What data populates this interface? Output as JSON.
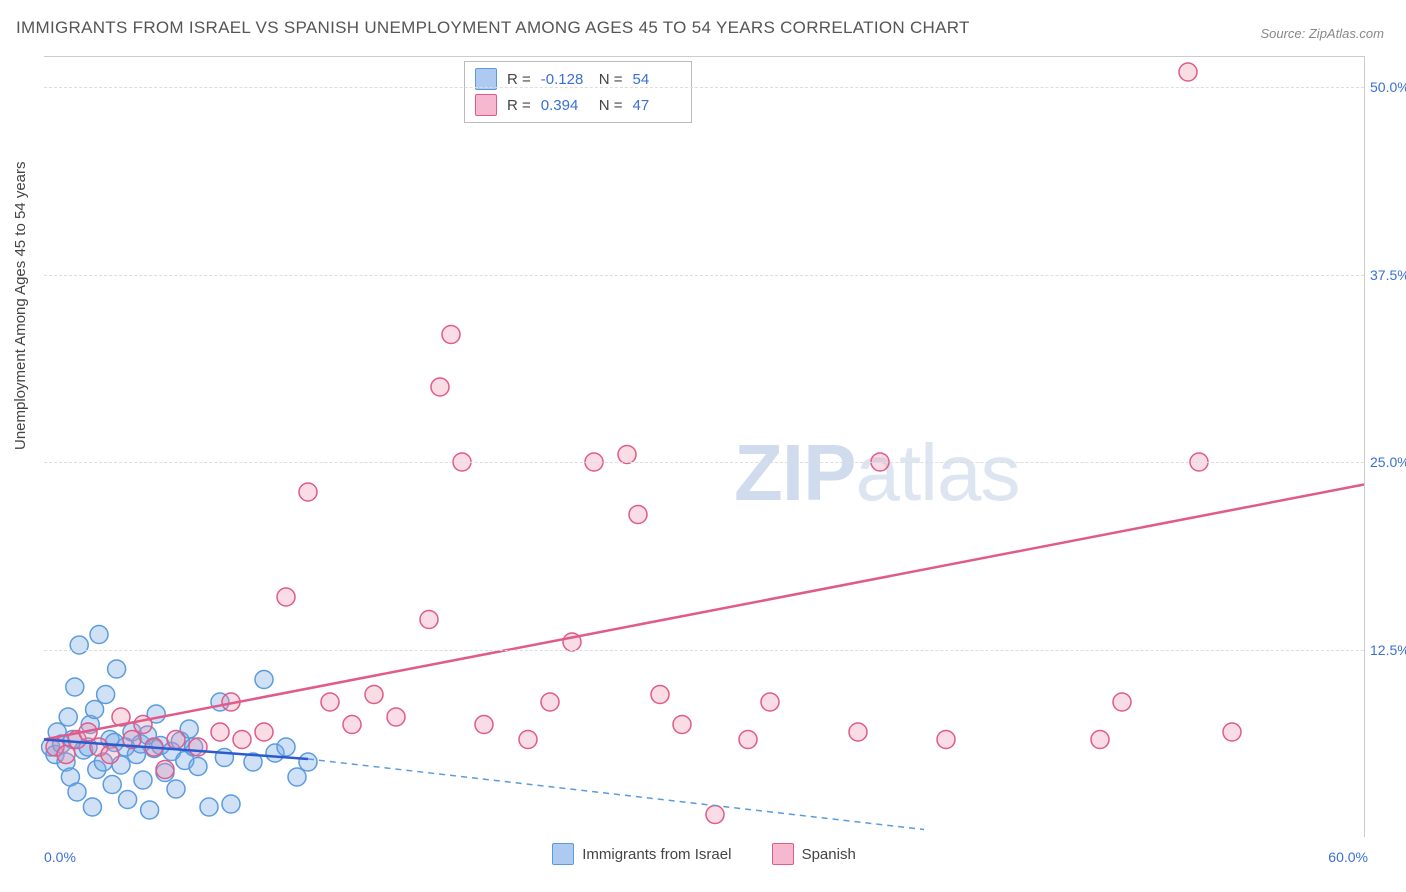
{
  "title": "IMMIGRANTS FROM ISRAEL VS SPANISH UNEMPLOYMENT AMONG AGES 45 TO 54 YEARS CORRELATION CHART",
  "source_label": "Source: ",
  "source_value": "ZipAtlas.com",
  "ylabel": "Unemployment Among Ages 45 to 54 years",
  "watermark_a": "ZIP",
  "watermark_b": "atlas",
  "chart": {
    "type": "scatter",
    "xlim": [
      0,
      60
    ],
    "ylim": [
      0,
      52
    ],
    "xtick_min_label": "0.0%",
    "xtick_max_label": "60.0%",
    "yticks": [
      12.5,
      25.0,
      37.5,
      50.0
    ],
    "ytick_labels": [
      "12.5%",
      "25.0%",
      "37.5%",
      "50.0%"
    ],
    "grid_color": "#dddddd",
    "background_color": "#ffffff",
    "axis_color": "#cccccc",
    "tick_label_color": "#3b6fd6",
    "marker_radius": 9,
    "marker_stroke_width": 1.5,
    "trend_line_width": 2.5,
    "series": [
      {
        "key": "israel",
        "label": "Immigrants from Israel",
        "fill": "rgba(120,170,230,0.35)",
        "stroke": "#5a9be0",
        "swatch_fill": "#aecaf0",
        "swatch_border": "#5a9be0",
        "R": "-0.128",
        "N": "54",
        "trend": {
          "x1": 0,
          "y1": 6.5,
          "x2": 12,
          "y2": 5.2,
          "dash_x2": 40,
          "dash_y2": 0.5
        },
        "points": [
          [
            0.3,
            6.0
          ],
          [
            0.5,
            5.5
          ],
          [
            0.6,
            7.0
          ],
          [
            0.8,
            6.2
          ],
          [
            1.0,
            5.0
          ],
          [
            1.1,
            8.0
          ],
          [
            1.2,
            4.0
          ],
          [
            1.3,
            6.5
          ],
          [
            1.4,
            10.0
          ],
          [
            1.5,
            3.0
          ],
          [
            1.6,
            12.8
          ],
          [
            1.8,
            5.8
          ],
          [
            2.0,
            6.0
          ],
          [
            2.1,
            7.5
          ],
          [
            2.2,
            2.0
          ],
          [
            2.3,
            8.5
          ],
          [
            2.4,
            4.5
          ],
          [
            2.5,
            13.5
          ],
          [
            2.7,
            5.0
          ],
          [
            2.8,
            9.5
          ],
          [
            3.0,
            6.5
          ],
          [
            3.1,
            3.5
          ],
          [
            3.2,
            6.3
          ],
          [
            3.3,
            11.2
          ],
          [
            3.5,
            4.8
          ],
          [
            3.7,
            6.0
          ],
          [
            3.8,
            2.5
          ],
          [
            4.0,
            7.0
          ],
          [
            4.2,
            5.5
          ],
          [
            4.4,
            6.2
          ],
          [
            4.5,
            3.8
          ],
          [
            4.7,
            6.8
          ],
          [
            4.8,
            1.8
          ],
          [
            5.0,
            5.9
          ],
          [
            5.1,
            8.2
          ],
          [
            5.3,
            6.1
          ],
          [
            5.5,
            4.3
          ],
          [
            5.8,
            5.7
          ],
          [
            6.0,
            3.2
          ],
          [
            6.2,
            6.4
          ],
          [
            6.4,
            5.1
          ],
          [
            6.6,
            7.2
          ],
          [
            6.8,
            6.0
          ],
          [
            7.0,
            4.7
          ],
          [
            7.5,
            2.0
          ],
          [
            8.0,
            9.0
          ],
          [
            8.2,
            5.3
          ],
          [
            8.5,
            2.2
          ],
          [
            9.5,
            5.0
          ],
          [
            10.0,
            10.5
          ],
          [
            10.5,
            5.6
          ],
          [
            11.0,
            6.0
          ],
          [
            11.5,
            4.0
          ],
          [
            12.0,
            5.0
          ]
        ]
      },
      {
        "key": "spanish",
        "label": "Spanish",
        "fill": "rgba(240,140,170,0.30)",
        "stroke": "#e05a8a",
        "swatch_fill": "#f5b8cf",
        "swatch_border": "#e05a8a",
        "R": "0.394",
        "N": "47",
        "trend": {
          "x1": 0,
          "y1": 6.5,
          "x2": 60,
          "y2": 23.5
        },
        "points": [
          [
            0.5,
            6.0
          ],
          [
            1.0,
            5.5
          ],
          [
            1.5,
            6.5
          ],
          [
            2.0,
            7.0
          ],
          [
            2.5,
            6.0
          ],
          [
            3.0,
            5.5
          ],
          [
            3.5,
            8.0
          ],
          [
            4.0,
            6.5
          ],
          [
            4.5,
            7.5
          ],
          [
            5.0,
            6.0
          ],
          [
            5.5,
            4.5
          ],
          [
            6.0,
            6.5
          ],
          [
            7.0,
            6.0
          ],
          [
            8.0,
            7.0
          ],
          [
            8.5,
            9.0
          ],
          [
            9.0,
            6.5
          ],
          [
            10.0,
            7.0
          ],
          [
            11.0,
            16.0
          ],
          [
            12.0,
            23.0
          ],
          [
            13.0,
            9.0
          ],
          [
            14.0,
            7.5
          ],
          [
            15.0,
            9.5
          ],
          [
            16.0,
            8.0
          ],
          [
            17.5,
            14.5
          ],
          [
            18.0,
            30.0
          ],
          [
            18.5,
            33.5
          ],
          [
            19.0,
            25.0
          ],
          [
            20.0,
            7.5
          ],
          [
            22.0,
            6.5
          ],
          [
            23.0,
            9.0
          ],
          [
            24.0,
            13.0
          ],
          [
            25.0,
            25.0
          ],
          [
            26.5,
            25.5
          ],
          [
            27.0,
            21.5
          ],
          [
            28.0,
            9.5
          ],
          [
            29.0,
            7.5
          ],
          [
            30.5,
            1.5
          ],
          [
            32.0,
            6.5
          ],
          [
            33.0,
            9.0
          ],
          [
            37.0,
            7.0
          ],
          [
            38.0,
            25.0
          ],
          [
            41.0,
            6.5
          ],
          [
            48.0,
            6.5
          ],
          [
            49.0,
            9.0
          ],
          [
            52.0,
            51.0
          ],
          [
            52.5,
            25.0
          ],
          [
            54.0,
            7.0
          ]
        ]
      }
    ],
    "legend_top": {
      "R_label": "R =",
      "N_label": "N ="
    }
  }
}
